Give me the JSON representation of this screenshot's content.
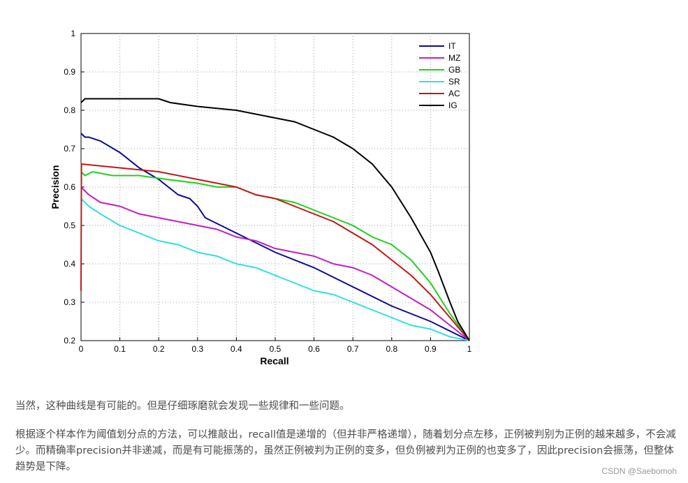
{
  "chart_data": {
    "type": "line",
    "title": "",
    "xlabel": "Recall",
    "ylabel": "Precision",
    "xlim": [
      0,
      1
    ],
    "ylim": [
      0.2,
      1
    ],
    "grid": true,
    "legend_position": "top-right",
    "xticks": [
      "0",
      "0.1",
      "0.2",
      "0.3",
      "0.4",
      "0.5",
      "0.6",
      "0.7",
      "0.8",
      "0.9",
      "1"
    ],
    "yticks": [
      "0.2",
      "0.3",
      "0.4",
      "0.5",
      "0.6",
      "0.7",
      "0.8",
      "0.9",
      "1"
    ],
    "series": [
      {
        "name": "IT",
        "color": "#0a0a96",
        "x": [
          0,
          0.01,
          0.02,
          0.05,
          0.1,
          0.15,
          0.2,
          0.25,
          0.28,
          0.3,
          0.32,
          0.4,
          0.5,
          0.6,
          0.7,
          0.8,
          0.9,
          1.0
        ],
        "y": [
          0.74,
          0.73,
          0.73,
          0.72,
          0.69,
          0.65,
          0.62,
          0.58,
          0.57,
          0.55,
          0.52,
          0.48,
          0.43,
          0.39,
          0.34,
          0.29,
          0.25,
          0.2
        ]
      },
      {
        "name": "MZ",
        "color": "#c020c0",
        "x": [
          0,
          0.02,
          0.05,
          0.1,
          0.15,
          0.2,
          0.25,
          0.3,
          0.35,
          0.4,
          0.45,
          0.5,
          0.55,
          0.6,
          0.65,
          0.7,
          0.75,
          0.8,
          0.85,
          0.9,
          0.95,
          1.0
        ],
        "y": [
          0.6,
          0.58,
          0.56,
          0.55,
          0.53,
          0.52,
          0.51,
          0.5,
          0.49,
          0.47,
          0.46,
          0.44,
          0.43,
          0.42,
          0.4,
          0.39,
          0.37,
          0.34,
          0.31,
          0.28,
          0.24,
          0.2
        ]
      },
      {
        "name": "GB",
        "color": "#20d020",
        "x": [
          0,
          0.01,
          0.03,
          0.08,
          0.15,
          0.22,
          0.3,
          0.35,
          0.4,
          0.45,
          0.5,
          0.55,
          0.6,
          0.65,
          0.7,
          0.75,
          0.8,
          0.85,
          0.9,
          0.95,
          1.0
        ],
        "y": [
          0.64,
          0.63,
          0.64,
          0.63,
          0.63,
          0.62,
          0.61,
          0.6,
          0.6,
          0.58,
          0.57,
          0.56,
          0.54,
          0.52,
          0.5,
          0.47,
          0.45,
          0.41,
          0.35,
          0.27,
          0.2
        ]
      },
      {
        "name": "SR",
        "color": "#30e0e0",
        "x": [
          0,
          0.02,
          0.05,
          0.1,
          0.15,
          0.2,
          0.25,
          0.3,
          0.35,
          0.4,
          0.45,
          0.5,
          0.55,
          0.6,
          0.65,
          0.7,
          0.75,
          0.8,
          0.85,
          0.9,
          0.95,
          1.0
        ],
        "y": [
          0.57,
          0.55,
          0.53,
          0.5,
          0.48,
          0.46,
          0.45,
          0.43,
          0.42,
          0.4,
          0.39,
          0.37,
          0.35,
          0.33,
          0.32,
          0.3,
          0.28,
          0.26,
          0.24,
          0.23,
          0.21,
          0.2
        ]
      },
      {
        "name": "AC",
        "color": "#c01818",
        "x": [
          0,
          0.001,
          0.1,
          0.2,
          0.25,
          0.3,
          0.35,
          0.4,
          0.45,
          0.5,
          0.55,
          0.6,
          0.65,
          0.7,
          0.75,
          0.8,
          0.85,
          0.9,
          0.95,
          1.0
        ],
        "y": [
          0.33,
          0.66,
          0.65,
          0.64,
          0.63,
          0.62,
          0.61,
          0.6,
          0.58,
          0.57,
          0.55,
          0.53,
          0.51,
          0.48,
          0.45,
          0.41,
          0.37,
          0.32,
          0.26,
          0.2
        ]
      },
      {
        "name": "IG",
        "color": "#000000",
        "x": [
          0,
          0.01,
          0.05,
          0.1,
          0.15,
          0.2,
          0.23,
          0.3,
          0.4,
          0.45,
          0.5,
          0.55,
          0.6,
          0.65,
          0.7,
          0.75,
          0.8,
          0.85,
          0.9,
          0.92,
          0.95,
          0.97,
          1.0
        ],
        "y": [
          0.82,
          0.83,
          0.83,
          0.83,
          0.83,
          0.83,
          0.82,
          0.81,
          0.8,
          0.79,
          0.78,
          0.77,
          0.75,
          0.73,
          0.7,
          0.66,
          0.6,
          0.52,
          0.43,
          0.38,
          0.3,
          0.25,
          0.2
        ]
      }
    ]
  },
  "text": {
    "p1": "当然，这种曲线是有可能的。但是仔细琢磨就会发现一些规律和一些问题。",
    "p2": "根据逐个样本作为阈值划分点的方法，可以推敲出，recall值是递增的（但并非严格递增），随着划分点左移，正例被判别为正例的越来越多，不会减少。而精确率precision并非递减，而是有可能振荡的，虽然正例被判为正例的变多，但负例被判为正例的也变多了，因此precision会振荡，但整体趋势是下降。",
    "watermark": "CSDN @Saebomoh"
  }
}
